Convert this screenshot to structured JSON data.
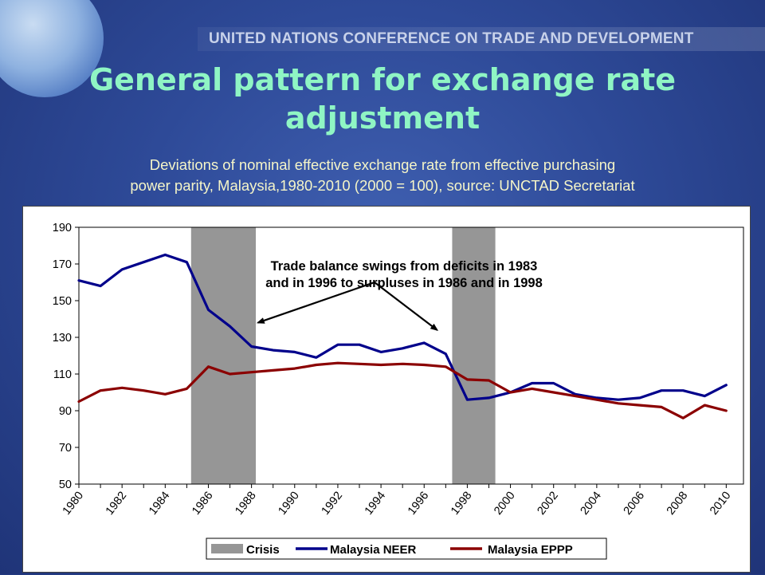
{
  "header": {
    "organization": "UNITED NATIONS CONFERENCE ON TRADE AND DEVELOPMENT",
    "title_line1": "General pattern for exchange rate",
    "title_line2": "adjustment",
    "subtitle_line1": "Deviations of nominal effective exchange rate from effective purchasing",
    "subtitle_line2": "power parity, Malaysia,1980-2010  (2000 = 100), source: UNCTAD Secretariat"
  },
  "colors": {
    "neer": "#00008b",
    "eppp": "#8b0000",
    "crisis": "#969696",
    "title": "#8ff5c4",
    "subtitle": "#f5f5c8"
  },
  "chart_data": {
    "type": "line",
    "x": [
      1980,
      1981,
      1982,
      1983,
      1984,
      1985,
      1986,
      1987,
      1988,
      1989,
      1990,
      1991,
      1992,
      1993,
      1994,
      1995,
      1996,
      1997,
      1998,
      1999,
      2000,
      2001,
      2002,
      2003,
      2004,
      2005,
      2006,
      2007,
      2008,
      2009,
      2010
    ],
    "x_tick_labels": [
      "1980",
      "1982",
      "1984",
      "1986",
      "1988",
      "1990",
      "1992",
      "1994",
      "1996",
      "1998",
      "2000",
      "2002",
      "2004",
      "2006",
      "2008",
      "2010"
    ],
    "ylim": [
      50,
      190
    ],
    "y_ticks": [
      50,
      70,
      90,
      110,
      130,
      150,
      170,
      190
    ],
    "series": [
      {
        "name": "Malaysia NEER",
        "values": [
          161,
          158,
          167,
          171,
          175,
          171,
          145,
          136,
          125,
          123,
          122,
          119,
          126,
          126,
          122,
          124,
          127,
          121,
          96,
          97,
          100,
          105,
          105,
          99,
          97,
          96,
          97,
          101,
          101,
          98,
          104
        ]
      },
      {
        "name": "Malaysia EPPP",
        "values": [
          95,
          101,
          102.5,
          101,
          99,
          102,
          114,
          110,
          111,
          112,
          113,
          115,
          116,
          115.5,
          115,
          115.5,
          115,
          114,
          107,
          106.5,
          100,
          102,
          100,
          98,
          96,
          94,
          93,
          92,
          86,
          93,
          90
        ]
      }
    ],
    "shaded_regions": [
      {
        "name": "Crisis",
        "from": 1985.2,
        "to": 1988.2
      },
      {
        "name": "Crisis",
        "from": 1997.3,
        "to": 1999.3
      }
    ],
    "annotation_line1": "Trade balance swings from deficits in 1983",
    "annotation_line2": "and in 1996 to surpluses in 1986 and in 1998",
    "legend": [
      "Crisis",
      "Malaysia NEER",
      "Malaysia EPPP"
    ],
    "legend_position": "bottom",
    "grid": false
  }
}
